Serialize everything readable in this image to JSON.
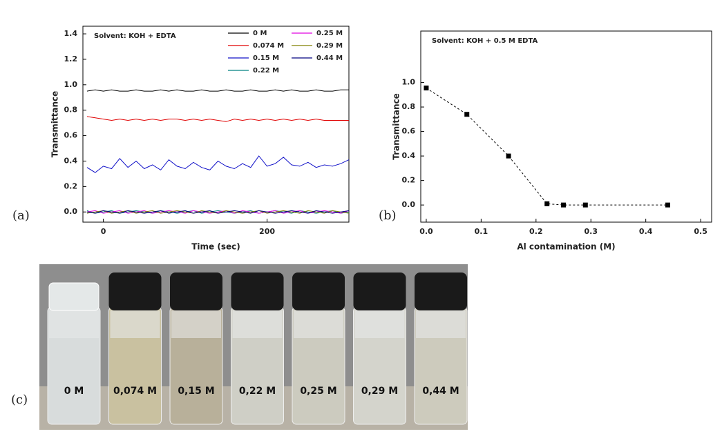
{
  "chart_data": [
    {
      "type": "line",
      "panel": "(a)",
      "annotation": "Solvent: KOH + EDTA",
      "xlabel": "Time (sec)",
      "ylabel": "Transmittance",
      "xlim": [
        -25,
        300
      ],
      "xticks": [
        0,
        200
      ],
      "ylim": [
        -0.08,
        1.46
      ],
      "yticks": [
        {
          "value": 0,
          "label": "0.0"
        },
        0.2,
        0.4,
        0.6,
        0.8,
        {
          "value": 1,
          "label": "1.0"
        },
        1.2,
        1.4
      ],
      "legend": "upper right",
      "x": [
        -20,
        -10,
        0,
        10,
        20,
        30,
        40,
        50,
        60,
        70,
        80,
        90,
        100,
        110,
        120,
        130,
        140,
        150,
        160,
        170,
        180,
        190,
        200,
        210,
        220,
        230,
        240,
        250,
        260,
        270,
        280,
        290,
        300
      ],
      "series": [
        {
          "name": "0 M",
          "color": "#000000",
          "values": [
            0.95,
            0.96,
            0.95,
            0.96,
            0.95,
            0.95,
            0.96,
            0.95,
            0.95,
            0.96,
            0.95,
            0.96,
            0.95,
            0.95,
            0.96,
            0.95,
            0.95,
            0.96,
            0.95,
            0.95,
            0.96,
            0.95,
            0.95,
            0.96,
            0.95,
            0.96,
            0.95,
            0.95,
            0.96,
            0.95,
            0.95,
            0.96,
            0.96
          ]
        },
        {
          "name": "0.074 M",
          "color": "#e00000",
          "values": [
            0.75,
            0.74,
            0.73,
            0.72,
            0.73,
            0.72,
            0.73,
            0.72,
            0.73,
            0.72,
            0.73,
            0.73,
            0.72,
            0.73,
            0.72,
            0.73,
            0.72,
            0.71,
            0.73,
            0.72,
            0.73,
            0.72,
            0.73,
            0.72,
            0.73,
            0.72,
            0.73,
            0.72,
            0.73,
            0.72,
            0.72,
            0.72,
            0.72
          ]
        },
        {
          "name": "0.15 M",
          "color": "#1010c8",
          "values": [
            0.35,
            0.31,
            0.36,
            0.34,
            0.42,
            0.35,
            0.4,
            0.34,
            0.37,
            0.33,
            0.41,
            0.36,
            0.34,
            0.39,
            0.35,
            0.33,
            0.4,
            0.36,
            0.34,
            0.38,
            0.35,
            0.44,
            0.36,
            0.38,
            0.43,
            0.37,
            0.36,
            0.39,
            0.35,
            0.37,
            0.36,
            0.38,
            0.41
          ]
        },
        {
          "name": "0.22 M",
          "color": "#008080",
          "values": [
            0.01,
            -0.01,
            0.0,
            0.01,
            -0.01,
            0.0,
            0.01,
            0.0,
            -0.01,
            0.01,
            0.0,
            -0.01,
            0.0,
            0.01,
            -0.01,
            0.0,
            0.01,
            0.0,
            -0.01,
            0.0,
            0.01,
            -0.01,
            0.0,
            0.01,
            0.0,
            -0.01,
            0.01,
            0.0,
            -0.01,
            0.0,
            0.01,
            -0.01,
            0.0
          ]
        },
        {
          "name": "0.25 M",
          "color": "#e000e0",
          "values": [
            0.0,
            0.01,
            -0.01,
            0.0,
            0.01,
            -0.01,
            0.0,
            0.01,
            -0.01,
            0.0,
            0.01,
            0.0,
            -0.01,
            0.01,
            0.0,
            -0.01,
            0.0,
            0.01,
            -0.01,
            0.01,
            0.0,
            -0.01,
            0.0,
            0.01,
            -0.01,
            0.0,
            0.01,
            -0.01,
            0.0,
            0.01,
            0.0,
            -0.01,
            0.01
          ]
        },
        {
          "name": "0.29 M",
          "color": "#808000",
          "values": [
            -0.01,
            0.0,
            0.01,
            -0.01,
            0.0,
            0.01,
            -0.01,
            0.0,
            0.01,
            -0.01,
            0.0,
            0.01,
            0.0,
            -0.01,
            0.01,
            0.0,
            -0.01,
            0.01,
            0.0,
            -0.01,
            0.0,
            0.01,
            -0.01,
            0.0,
            0.01,
            0.0,
            -0.01,
            0.01,
            0.0,
            -0.01,
            0.01,
            0.0,
            -0.01
          ]
        },
        {
          "name": "0.44 M",
          "color": "#000080",
          "values": [
            0.0,
            -0.01,
            0.01,
            0.0,
            -0.01,
            0.01,
            0.0,
            -0.01,
            0.0,
            0.01,
            -0.01,
            0.0,
            0.01,
            -0.01,
            0.0,
            0.01,
            -0.01,
            0.0,
            0.01,
            0.0,
            -0.01,
            0.01,
            0.0,
            -0.01,
            0.0,
            0.01,
            0.0,
            -0.01,
            0.01,
            0.0,
            -0.01,
            0.0,
            0.01
          ]
        }
      ]
    },
    {
      "type": "line",
      "panel": "(b)",
      "annotation": "Solvent: KOH + 0.5 M EDTA",
      "xlabel": "Al contamination (M)",
      "ylabel": "Transmittance",
      "xlim": [
        -0.01,
        0.52
      ],
      "xticks": [
        {
          "value": 0,
          "label": "0.0"
        },
        0.1,
        0.2,
        0.3,
        0.4,
        0.5
      ],
      "ylim": [
        -0.14,
        1.42
      ],
      "yticks": [
        {
          "value": 0,
          "label": "0.0"
        },
        0.2,
        0.4,
        0.6,
        0.8,
        {
          "value": 1,
          "label": "1.0"
        }
      ],
      "marker": "square",
      "linestyle": "dashed",
      "x": [
        0,
        0.074,
        0.15,
        0.22,
        0.25,
        0.29,
        0.44
      ],
      "series": [
        {
          "color": "#000000",
          "values": [
            0.955,
            0.74,
            0.4,
            0.01,
            0.0,
            0.0,
            0.0
          ]
        }
      ]
    }
  ],
  "photo": {
    "panel": "(c)",
    "labels": [
      "0 M",
      "0,074 M",
      "0,15 M",
      "0,22 M",
      "0,25 M",
      "0,29 M",
      "0,44 M"
    ]
  }
}
